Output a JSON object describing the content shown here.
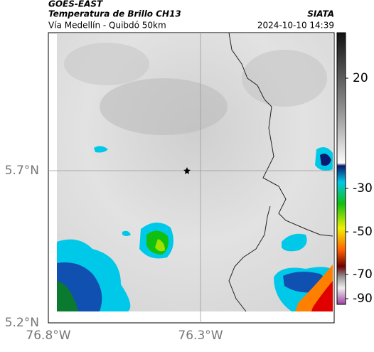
{
  "header": {
    "source": "GOES-EAST",
    "title": "Temperatura de Brillo CH13",
    "subtitle": "Vía Medellín - Quibdó 50km",
    "agency": "SIATA",
    "timestamp": "2024-10-10 14:39"
  },
  "map": {
    "lat_labels": [
      "5.7°N",
      "5.2°N"
    ],
    "lon_labels": [
      "76.8°W",
      "76.3°W"
    ]
  },
  "colorbar": {
    "tick_labels": [
      "20",
      "-30",
      "-50",
      "-70",
      "-90"
    ]
  }
}
